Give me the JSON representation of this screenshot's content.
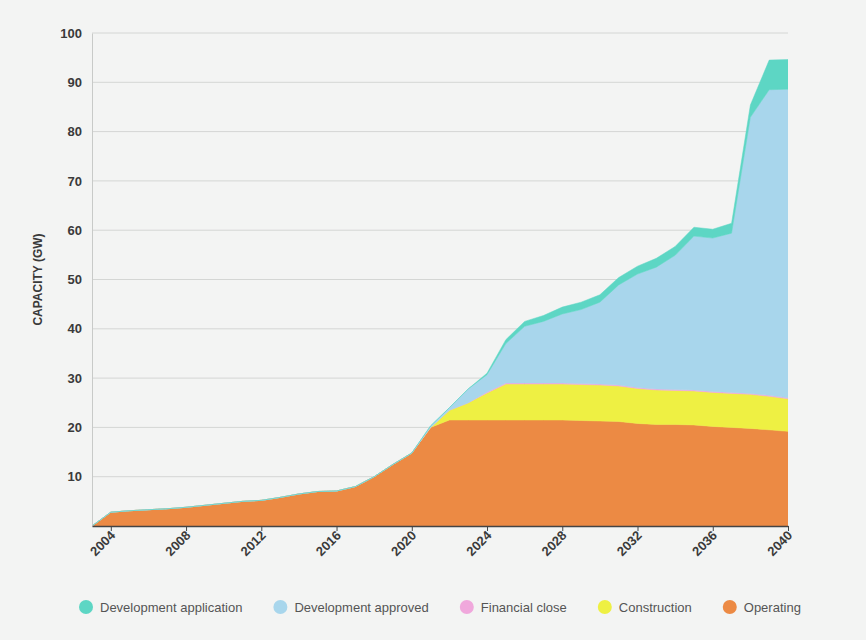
{
  "chart_data": {
    "type": "area",
    "stacked": true,
    "y_label": "CAPACITY (GW)",
    "x": [
      2003,
      2004,
      2005,
      2006,
      2007,
      2008,
      2009,
      2010,
      2011,
      2012,
      2013,
      2014,
      2015,
      2016,
      2017,
      2018,
      2019,
      2020,
      2021,
      2022,
      2023,
      2024,
      2025,
      2026,
      2027,
      2028,
      2029,
      2030,
      2031,
      2032,
      2033,
      2034,
      2035,
      2036,
      2037,
      2038,
      2039,
      2040
    ],
    "xlim": [
      2003,
      2040
    ],
    "xticks": [
      2004,
      2008,
      2012,
      2016,
      2020,
      2024,
      2028,
      2032,
      2036,
      2040
    ],
    "ylim": [
      0,
      100
    ],
    "yticks": [
      10,
      20,
      30,
      40,
      50,
      60,
      70,
      80,
      90,
      100
    ],
    "grid": true,
    "legend": "bottom",
    "series": [
      {
        "name": "Development application",
        "color": "#5dd6c4",
        "values": [
          0,
          0,
          0,
          0,
          0,
          0,
          0,
          0,
          0,
          0,
          0,
          0,
          0,
          0,
          0,
          0,
          0,
          0,
          0,
          0,
          0,
          0.3,
          0.8,
          1,
          1.2,
          1.4,
          1.5,
          1.5,
          1.5,
          1.6,
          1.8,
          1.8,
          1.8,
          1.8,
          2,
          2.5,
          6,
          6
        ]
      },
      {
        "name": "Development approved",
        "color": "#a8d6ec",
        "values": [
          0,
          0,
          0,
          0,
          0,
          0,
          0,
          0,
          0,
          0,
          0,
          0,
          0,
          0,
          0,
          0,
          0,
          0,
          0.3,
          0.5,
          2.8,
          3.5,
          8,
          11.5,
          12.5,
          14,
          15,
          16.6,
          20.3,
          23,
          24.7,
          27.2,
          31.2,
          31.1,
          32.3,
          56,
          62,
          62.6
        ]
      },
      {
        "name": "Financial close",
        "color": "#f0a8dc",
        "values": [
          0,
          0,
          0,
          0,
          0,
          0,
          0,
          0,
          0,
          0,
          0,
          0,
          0,
          0,
          0,
          0,
          0,
          0,
          0,
          0,
          0,
          0.2,
          0.2,
          0.2,
          0.2,
          0.2,
          0.2,
          0.2,
          0.2,
          0.2,
          0.2,
          0.2,
          0.2,
          0.2,
          0.2,
          0.2,
          0.2,
          0.2
        ]
      },
      {
        "name": "Construction",
        "color": "#eef043",
        "values": [
          0,
          0,
          0,
          0,
          0,
          0,
          0,
          0,
          0,
          0,
          0,
          0,
          0,
          0,
          0,
          0,
          0,
          0,
          0,
          2,
          3.5,
          5.5,
          7.3,
          7.3,
          7.3,
          7.3,
          7.3,
          7.3,
          7.2,
          7.1,
          7,
          6.9,
          6.9,
          6.9,
          6.9,
          6.9,
          6.8,
          6.6
        ]
      },
      {
        "name": "Operating",
        "color": "#ec8a44",
        "values": [
          0,
          2.8,
          3.1,
          3.3,
          3.5,
          3.8,
          4.2,
          4.6,
          5,
          5.2,
          5.8,
          6.5,
          7,
          7.1,
          8,
          10,
          12.5,
          14.8,
          20,
          21.5,
          21.5,
          21.5,
          21.5,
          21.5,
          21.5,
          21.5,
          21.4,
          21.3,
          21.2,
          20.8,
          20.6,
          20.6,
          20.5,
          20.2,
          20,
          19.8,
          19.5,
          19.2
        ]
      }
    ]
  }
}
